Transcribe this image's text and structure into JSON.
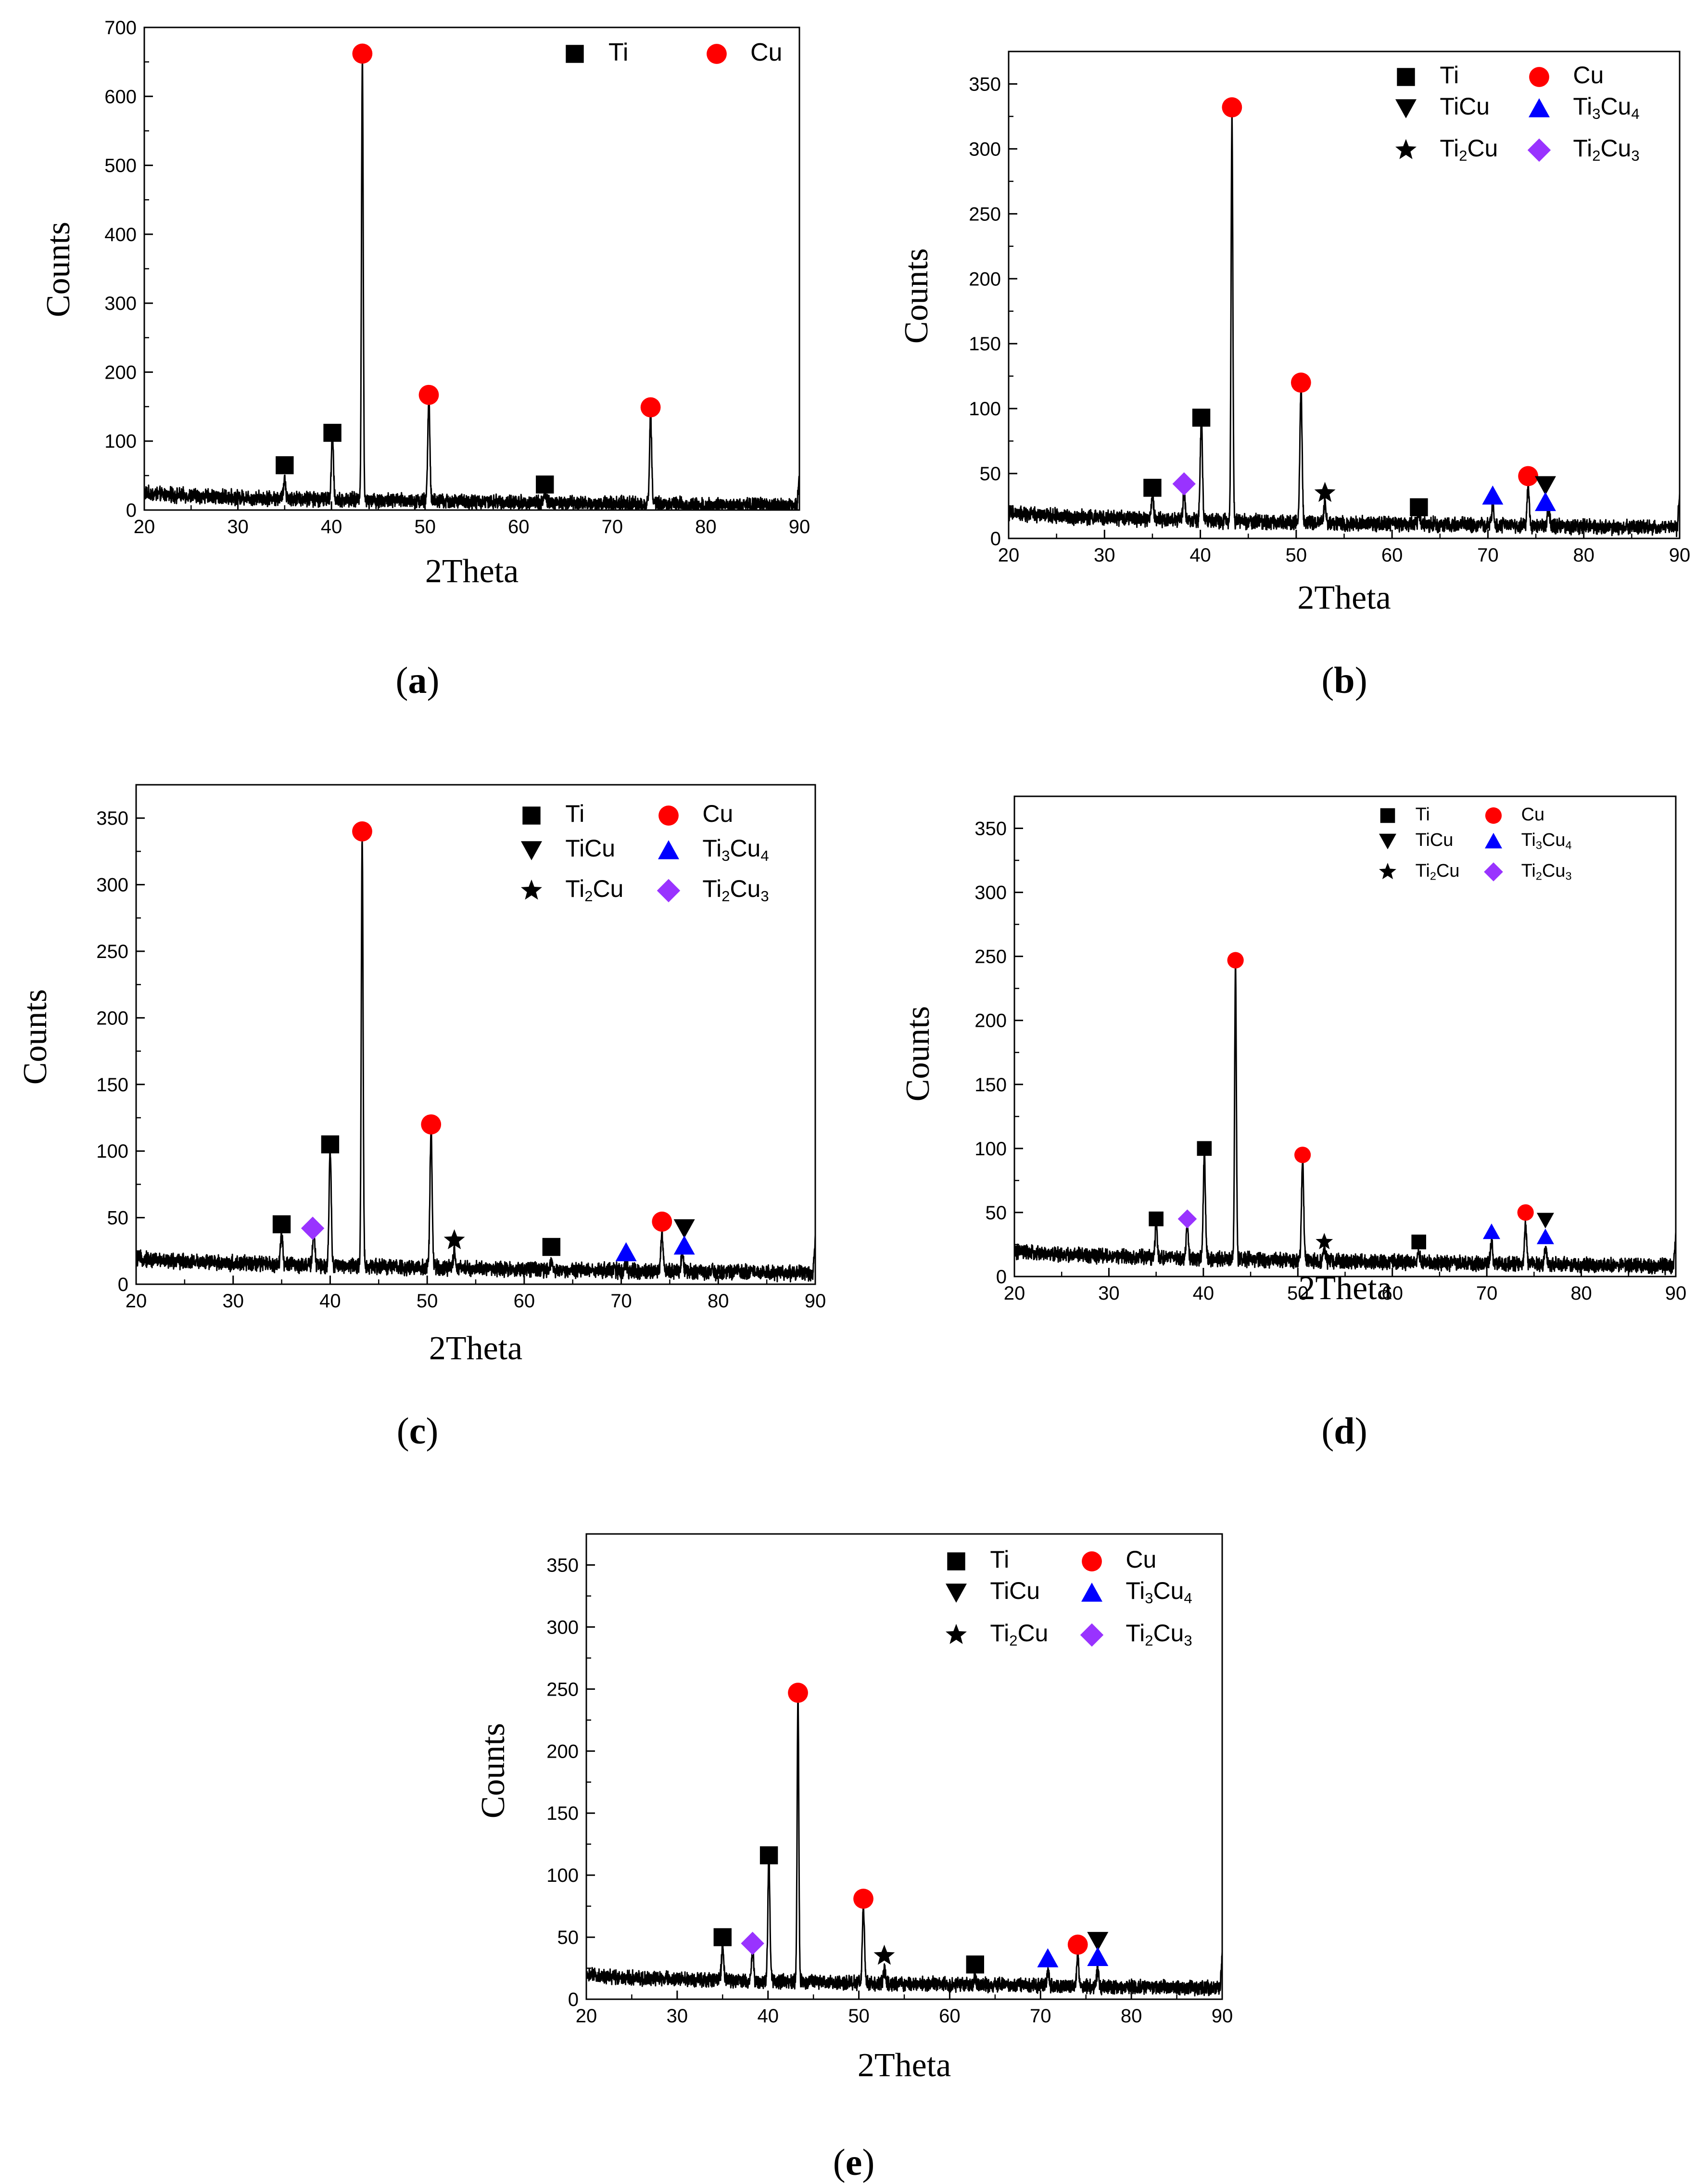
{
  "figure": {
    "legend_entries": [
      {
        "name": "Ti",
        "label": "Ti",
        "sub": "",
        "label2": "",
        "sub2": ""
      },
      {
        "name": "Cu",
        "label": "Cu",
        "sub": "",
        "label2": "",
        "sub2": ""
      },
      {
        "name": "TiCu",
        "label": "TiCu",
        "sub": "",
        "label2": "",
        "sub2": ""
      },
      {
        "name": "Ti3Cu4",
        "label": "Ti",
        "sub": "3",
        "label2": "Cu",
        "sub2": "4"
      },
      {
        "name": "Ti2Cu",
        "label": "Ti",
        "sub": "2",
        "label2": "Cu",
        "sub2": ""
      },
      {
        "name": "Ti2Cu3",
        "label": "Ti",
        "sub": "2",
        "label2": "Cu",
        "sub2": "3"
      }
    ],
    "colors": {
      "Ti": "#000000",
      "Cu": "#ff0000",
      "TiCu": "#000000",
      "Ti3Cu4": "#0000ff",
      "Ti2Cu": "#000000",
      "Ti2Cu3": "#9933ff"
    }
  },
  "chart_data": [
    {
      "type": "line",
      "panel": "(a)",
      "panel_letter": "a",
      "xlabel": "2Theta",
      "ylabel": "Counts",
      "xlim": [
        20,
        90
      ],
      "ylim": [
        0,
        700
      ],
      "xticks": [
        20,
        30,
        40,
        50,
        60,
        70,
        80,
        90
      ],
      "yticks": [
        0,
        100,
        200,
        300,
        400,
        500,
        600,
        700
      ],
      "legend": [
        "Ti",
        "Cu"
      ],
      "baseline_start": 25,
      "baseline_end": 6,
      "peaks": [
        {
          "x": 35.0,
          "y": 35
        },
        {
          "x": 40.1,
          "y": 95
        },
        {
          "x": 43.3,
          "y": 650
        },
        {
          "x": 50.4,
          "y": 155
        },
        {
          "x": 62.8,
          "y": 20
        },
        {
          "x": 74.1,
          "y": 135
        }
      ],
      "markers": [
        {
          "phase": "Ti",
          "x": 35.0,
          "y": 65
        },
        {
          "phase": "Ti",
          "x": 40.1,
          "y": 112
        },
        {
          "phase": "Cu",
          "x": 43.3,
          "y": 662
        },
        {
          "phase": "Cu",
          "x": 50.4,
          "y": 167
        },
        {
          "phase": "Ti",
          "x": 62.8,
          "y": 37
        },
        {
          "phase": "Cu",
          "x": 74.1,
          "y": 149
        }
      ]
    },
    {
      "type": "line",
      "panel": "(b)",
      "panel_letter": "b",
      "xlabel": "2Theta",
      "ylabel": "Counts",
      "xlim": [
        20,
        90
      ],
      "ylim": [
        0,
        375
      ],
      "xticks": [
        20,
        30,
        40,
        50,
        60,
        70,
        80,
        90
      ],
      "yticks": [
        0,
        50,
        100,
        150,
        200,
        250,
        300,
        350
      ],
      "legend": [
        "Ti",
        "Cu",
        "TiCu",
        "Ti3Cu4",
        "Ti2Cu",
        "Ti2Cu3"
      ],
      "baseline_start": 20,
      "baseline_end": 8,
      "peaks": [
        {
          "x": 35.0,
          "y": 27
        },
        {
          "x": 38.3,
          "y": 30
        },
        {
          "x": 40.1,
          "y": 85
        },
        {
          "x": 43.3,
          "y": 320
        },
        {
          "x": 50.5,
          "y": 112
        },
        {
          "x": 53.0,
          "y": 25
        },
        {
          "x": 62.8,
          "y": 16
        },
        {
          "x": 70.5,
          "y": 24
        },
        {
          "x": 74.2,
          "y": 38
        },
        {
          "x": 76.3,
          "y": 22
        }
      ],
      "markers": [
        {
          "phase": "Ti",
          "x": 35.0,
          "y": 39
        },
        {
          "phase": "Ti2Cu3",
          "x": 38.3,
          "y": 42
        },
        {
          "phase": "Ti",
          "x": 40.1,
          "y": 93
        },
        {
          "phase": "Cu",
          "x": 43.3,
          "y": 332
        },
        {
          "phase": "Cu",
          "x": 50.5,
          "y": 120
        },
        {
          "phase": "Ti2Cu",
          "x": 53.0,
          "y": 35
        },
        {
          "phase": "Ti",
          "x": 62.8,
          "y": 24
        },
        {
          "phase": "Ti3Cu4",
          "x": 70.5,
          "y": 33
        },
        {
          "phase": "Cu",
          "x": 74.2,
          "y": 48
        },
        {
          "phase": "TiCu",
          "x": 76.0,
          "y": 41
        },
        {
          "phase": "Ti3Cu4",
          "x": 76.0,
          "y": 28
        }
      ]
    },
    {
      "type": "line",
      "panel": "(c)",
      "panel_letter": "c",
      "xlabel": "2Theta",
      "ylabel": "Counts",
      "xlim": [
        20,
        90
      ],
      "ylim": [
        0,
        375
      ],
      "xticks": [
        20,
        30,
        40,
        50,
        60,
        70,
        80,
        90
      ],
      "yticks": [
        0,
        50,
        100,
        150,
        200,
        250,
        300,
        350
      ],
      "legend": [
        "Ti",
        "Cu",
        "TiCu",
        "Ti3Cu4",
        "Ti2Cu",
        "Ti2Cu3"
      ],
      "baseline_start": 20,
      "baseline_end": 8,
      "peaks": [
        {
          "x": 35.0,
          "y": 32
        },
        {
          "x": 38.3,
          "y": 32
        },
        {
          "x": 40.0,
          "y": 95
        },
        {
          "x": 43.3,
          "y": 330
        },
        {
          "x": 50.4,
          "y": 112
        },
        {
          "x": 52.8,
          "y": 22
        },
        {
          "x": 62.8,
          "y": 16
        },
        {
          "x": 70.5,
          "y": 15
        },
        {
          "x": 74.2,
          "y": 38
        },
        {
          "x": 76.3,
          "y": 22
        }
      ],
      "markers": [
        {
          "phase": "Ti",
          "x": 35.0,
          "y": 45
        },
        {
          "phase": "Ti2Cu3",
          "x": 38.2,
          "y": 42
        },
        {
          "phase": "Ti",
          "x": 40.0,
          "y": 105
        },
        {
          "phase": "Cu",
          "x": 43.3,
          "y": 340
        },
        {
          "phase": "Cu",
          "x": 50.4,
          "y": 120
        },
        {
          "phase": "Ti2Cu",
          "x": 52.8,
          "y": 33
        },
        {
          "phase": "Ti",
          "x": 62.8,
          "y": 28
        },
        {
          "phase": "Ti3Cu4",
          "x": 70.5,
          "y": 24
        },
        {
          "phase": "Cu",
          "x": 74.2,
          "y": 47
        },
        {
          "phase": "TiCu",
          "x": 76.5,
          "y": 42
        },
        {
          "phase": "Ti3Cu4",
          "x": 76.5,
          "y": 29
        }
      ]
    },
    {
      "type": "line",
      "panel": "(d)",
      "panel_letter": "d",
      "xlabel": "2Theta",
      "ylabel": "Counts",
      "xlim": [
        20,
        90
      ],
      "ylim": [
        0,
        375
      ],
      "xticks": [
        20,
        30,
        40,
        50,
        60,
        70,
        80,
        90
      ],
      "yticks": [
        0,
        50,
        100,
        150,
        200,
        250,
        300,
        350
      ],
      "legend": [
        "Ti",
        "Cu",
        "TiCu",
        "Ti3Cu4",
        "Ti2Cu",
        "Ti2Cu3"
      ],
      "baseline_start": 20,
      "baseline_end": 8,
      "peaks": [
        {
          "x": 35.0,
          "y": 33
        },
        {
          "x": 38.3,
          "y": 33
        },
        {
          "x": 40.1,
          "y": 90
        },
        {
          "x": 43.4,
          "y": 238
        },
        {
          "x": 50.5,
          "y": 87
        },
        {
          "x": 52.8,
          "y": 18
        },
        {
          "x": 62.8,
          "y": 16
        },
        {
          "x": 70.5,
          "y": 25
        },
        {
          "x": 74.1,
          "y": 40
        },
        {
          "x": 76.2,
          "y": 22
        }
      ],
      "markers": [
        {
          "phase": "Ti",
          "x": 35.0,
          "y": 45
        },
        {
          "phase": "Ti2Cu3",
          "x": 38.3,
          "y": 45
        },
        {
          "phase": "Ti",
          "x": 40.1,
          "y": 100
        },
        {
          "phase": "Cu",
          "x": 43.4,
          "y": 247
        },
        {
          "phase": "Cu",
          "x": 50.5,
          "y": 95
        },
        {
          "phase": "Ti2Cu",
          "x": 52.8,
          "y": 27
        },
        {
          "phase": "Ti",
          "x": 62.8,
          "y": 27
        },
        {
          "phase": "Ti3Cu4",
          "x": 70.5,
          "y": 35
        },
        {
          "phase": "Cu",
          "x": 74.1,
          "y": 50
        },
        {
          "phase": "TiCu",
          "x": 76.2,
          "y": 44
        },
        {
          "phase": "Ti3Cu4",
          "x": 76.2,
          "y": 31
        }
      ]
    },
    {
      "type": "line",
      "panel": "(e)",
      "panel_letter": "e",
      "xlabel": "2Theta",
      "ylabel": "Counts",
      "xlim": [
        20,
        90
      ],
      "ylim": [
        0,
        375
      ],
      "xticks": [
        20,
        30,
        40,
        50,
        60,
        70,
        80,
        90
      ],
      "yticks": [
        0,
        50,
        100,
        150,
        200,
        250,
        300,
        350
      ],
      "legend": [
        "Ti",
        "Cu",
        "TiCu",
        "Ti3Cu4",
        "Ti2Cu",
        "Ti2Cu3"
      ],
      "baseline_start": 20,
      "baseline_end": 9,
      "peaks": [
        {
          "x": 35.0,
          "y": 38
        },
        {
          "x": 38.3,
          "y": 34
        },
        {
          "x": 40.1,
          "y": 108
        },
        {
          "x": 43.3,
          "y": 240
        },
        {
          "x": 50.5,
          "y": 72
        },
        {
          "x": 52.8,
          "y": 20
        },
        {
          "x": 62.8,
          "y": 16
        },
        {
          "x": 70.8,
          "y": 22
        },
        {
          "x": 74.1,
          "y": 35
        },
        {
          "x": 76.3,
          "y": 23
        }
      ],
      "markers": [
        {
          "phase": "Ti",
          "x": 35.0,
          "y": 50
        },
        {
          "phase": "Ti2Cu3",
          "x": 38.3,
          "y": 45
        },
        {
          "phase": "Ti",
          "x": 40.1,
          "y": 116
        },
        {
          "phase": "Cu",
          "x": 43.3,
          "y": 247
        },
        {
          "phase": "Cu",
          "x": 50.5,
          "y": 81
        },
        {
          "phase": "Ti2Cu",
          "x": 52.8,
          "y": 35
        },
        {
          "phase": "Ti",
          "x": 62.8,
          "y": 28
        },
        {
          "phase": "Ti3Cu4",
          "x": 70.8,
          "y": 33
        },
        {
          "phase": "Cu",
          "x": 74.1,
          "y": 44
        },
        {
          "phase": "TiCu",
          "x": 76.3,
          "y": 47
        },
        {
          "phase": "Ti3Cu4",
          "x": 76.3,
          "y": 34
        }
      ]
    }
  ]
}
